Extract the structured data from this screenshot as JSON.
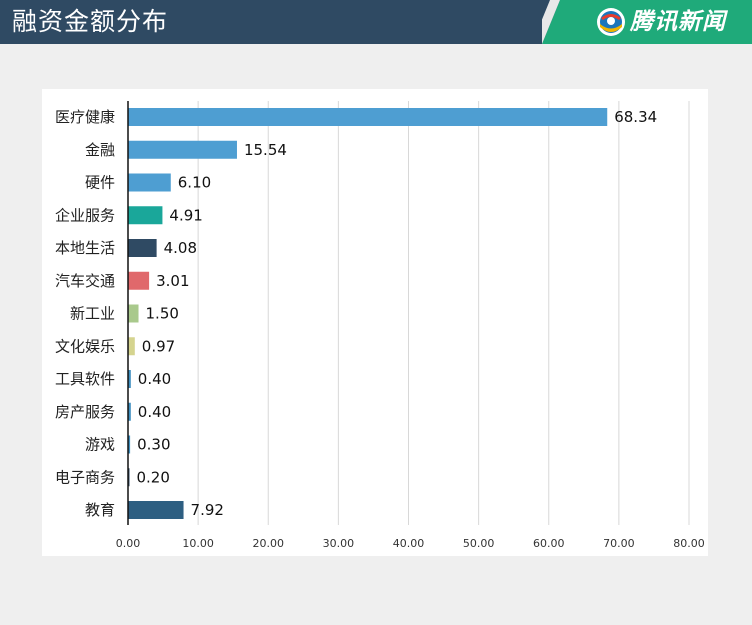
{
  "header": {
    "title": "融资金额分布",
    "brand_name": "腾讯新闻",
    "brand_logo_icon": "tencent-news-logo"
  },
  "colors": {
    "header_bg": "#2f4a63",
    "brand_green": "#1faa7a",
    "axis": "#111111",
    "grid": "#d8d8d8"
  },
  "chart_data": {
    "type": "bar",
    "orientation": "horizontal",
    "categories": [
      "医疗健康",
      "金融",
      "硬件",
      "企业服务",
      "本地生活",
      "汽车交通",
      "新工业",
      "文化娱乐",
      "工具软件",
      "房产服务",
      "游戏",
      "电子商务",
      "教育"
    ],
    "values": [
      68.34,
      15.54,
      6.1,
      4.91,
      4.08,
      3.01,
      1.5,
      0.97,
      0.4,
      0.4,
      0.3,
      0.2,
      7.92
    ],
    "value_labels": [
      "68.34",
      "15.54",
      "6.10",
      "4.91",
      "4.08",
      "3.01",
      "1.50",
      "0.97",
      "0.40",
      "0.40",
      "0.30",
      "0.20",
      "7.92"
    ],
    "bar_colors": [
      "#4e9ed2",
      "#4e9ed2",
      "#4e9ed2",
      "#1aa79a",
      "#2f4a63",
      "#e0686b",
      "#a9c98c",
      "#d5d48f",
      "#3e8fbf",
      "#3e8fbf",
      "#3e8fbf",
      "#2f4a63",
      "#2e5f82"
    ],
    "x_ticks": [
      "0.00",
      "10.00",
      "20.00",
      "30.00",
      "40.00",
      "50.00",
      "60.00",
      "70.00",
      "80.00"
    ],
    "xlim": [
      0,
      80
    ],
    "grid": true,
    "legend": "none",
    "title": "",
    "xlabel": "",
    "ylabel": ""
  }
}
